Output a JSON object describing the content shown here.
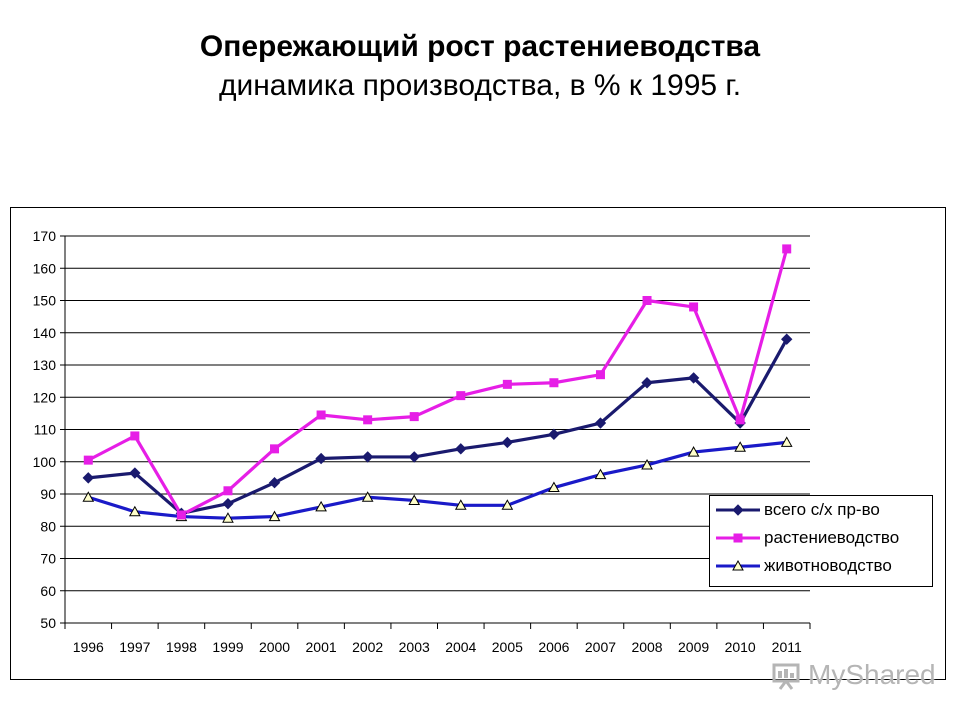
{
  "header": {
    "title": "Опережающий рост растениеводства",
    "subtitle": "динамика производства, в % к 1995 г."
  },
  "watermark": {
    "text": "MyShared",
    "icon": "presentation-board-icon"
  },
  "chart_data": {
    "type": "line",
    "categories": [
      "1996",
      "1997",
      "1998",
      "1999",
      "2000",
      "2001",
      "2002",
      "2003",
      "2004",
      "2005",
      "2006",
      "2007",
      "2008",
      "2009",
      "2010",
      "2011"
    ],
    "ylim": [
      50,
      170
    ],
    "yticks": [
      50,
      60,
      70,
      80,
      90,
      100,
      110,
      120,
      130,
      140,
      150,
      160,
      170
    ],
    "grid": true,
    "legend_position": "bottom-right",
    "xlabel": "",
    "ylabel": "",
    "series": [
      {
        "name": "всего с/х пр-во",
        "color": "#1a1a6e",
        "marker": "diamond",
        "values": [
          95,
          96.5,
          84,
          87,
          93.5,
          101,
          101.5,
          101.5,
          104,
          106,
          108.5,
          112,
          124.5,
          126,
          112,
          138
        ]
      },
      {
        "name": "растениеводство",
        "color": "#e61ee6",
        "marker": "square",
        "values": [
          100.5,
          108,
          83.5,
          91,
          104,
          114.5,
          113,
          114,
          120.5,
          124,
          124.5,
          127,
          150,
          148,
          113,
          166
        ]
      },
      {
        "name": "животноводство",
        "color": "#1a1ac8",
        "marker": "triangle",
        "values": [
          89,
          84.5,
          83,
          82.5,
          83,
          86,
          89,
          88,
          86.5,
          86.5,
          92,
          96,
          99,
          103,
          104.5,
          106
        ]
      }
    ]
  }
}
